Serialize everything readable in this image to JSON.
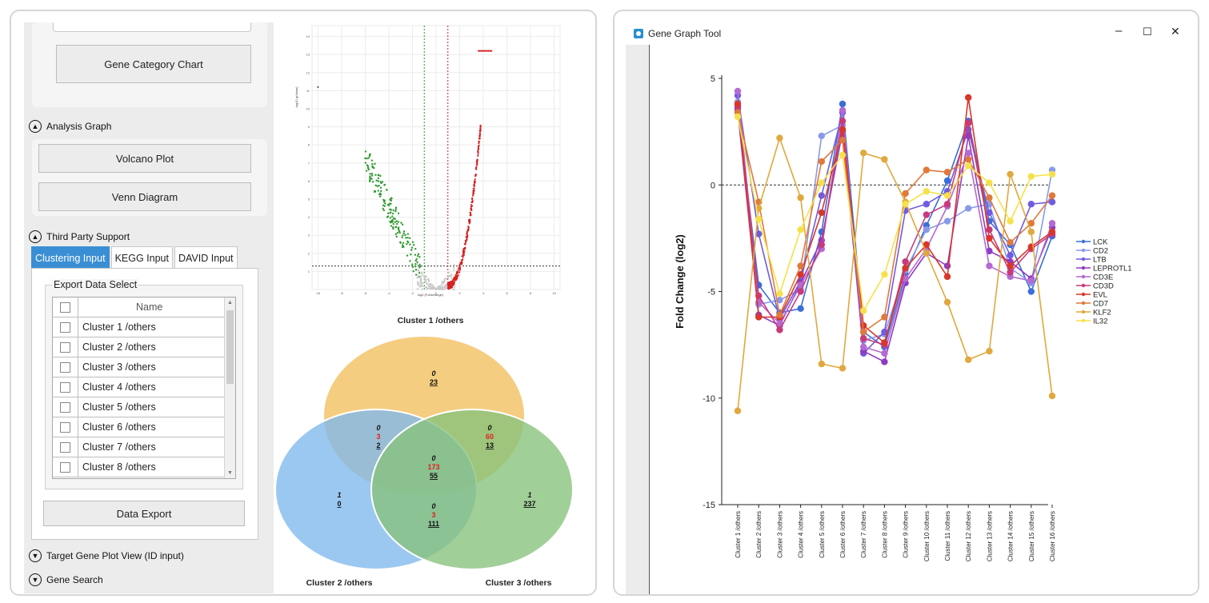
{
  "left": {
    "buttons": {
      "gene_category_chart": "Gene Category Chart",
      "volcano_plot": "Volcano Plot",
      "venn_diagram": "Venn Diagram",
      "data_export": "Data Export"
    },
    "sections": {
      "analysis_graph": "Analysis Graph",
      "third_party_support": "Third Party Support",
      "target_gene_plot_view": "Target Gene Plot View (ID input)",
      "gene_search": "Gene Search"
    },
    "tabs": [
      "Clustering Input",
      "KEGG Input",
      "DAVID Input"
    ],
    "export_group_label": "Export Data Select",
    "table_header": "Name",
    "table_rows": [
      "Cluster 1 /others",
      "Cluster 2 /others",
      "Cluster 3 /others",
      "Cluster 4 /others",
      "Cluster 5 /others",
      "Cluster 6 /others",
      "Cluster 7 /others",
      "Cluster 8 /others"
    ]
  },
  "volcano": {
    "title": "Cluster 1 /others",
    "x_ticks": [
      "-10",
      "-8",
      "-6",
      "-4",
      "-2",
      "0",
      "2",
      "4",
      "6",
      "8",
      "10"
    ],
    "y_ticks": [
      "1",
      "2",
      "3",
      "4",
      "5",
      "6",
      "7",
      "8",
      "9",
      "10",
      "11",
      "12",
      "13",
      "14"
    ],
    "xlabel": "log2 (Foldchange)",
    "ylabel": "-log10 (pValue)"
  },
  "venn": {
    "sets": [
      "Cluster 1 /others",
      "Cluster 2 /others",
      "Cluster 3 /others"
    ],
    "set_colors": [
      "#f2c46a",
      "#7fb8ec",
      "#86c27b"
    ],
    "regions": {
      "c1_only": {
        "top": "0",
        "mid": "",
        "bottom": "23"
      },
      "c2_only": {
        "top": "1",
        "mid": "",
        "bottom": "0"
      },
      "c3_only": {
        "top": "1",
        "mid": "",
        "bottom": "237"
      },
      "c1_c2": {
        "top": "0",
        "mid": "3",
        "bottom": "2"
      },
      "c1_c3": {
        "top": "0",
        "mid": "60",
        "bottom": "13"
      },
      "c2_c3": {
        "top": "0",
        "mid": "3",
        "bottom": "111"
      },
      "all": {
        "top": "0",
        "mid": "173",
        "bottom": "55"
      }
    },
    "labels": {
      "c2": "Cluster 2 /others",
      "c3": "Cluster 3 /others"
    }
  },
  "window": {
    "title": "Gene Graph Tool",
    "controls": {
      "minimize": "–",
      "maximize": "☐",
      "close": "✕"
    }
  },
  "chart_data": {
    "type": "line",
    "title": "",
    "xlabel": "",
    "ylabel": "Fold Change (log2)",
    "ylim": [
      -15,
      5
    ],
    "y_ticks": [
      5,
      0,
      -5,
      -10,
      -15
    ],
    "reference_line": 0,
    "legend_position": "right",
    "categories": [
      "Cluster 1 /others",
      "Cluster 2 /others",
      "Cluster 3 /others",
      "Cluster 4 /others",
      "Cluster 5 /others",
      "Cluster 6 /others",
      "Cluster 7 /others",
      "Cluster 8 /others",
      "Cluster 9 /others",
      "Cluster 10 /others",
      "Cluster 11 /others",
      "Cluster 12 /others",
      "Cluster 13 /others",
      "Cluster 14 /others",
      "Cluster 15 /others",
      "Cluster 16 /others"
    ],
    "series": [
      {
        "name": "LCK",
        "color": "#3a6fd8",
        "values": [
          3.6,
          -4.7,
          -6.0,
          -5.8,
          -2.2,
          3.8,
          -6.9,
          -7.6,
          -4.2,
          -1.9,
          0.2,
          3.0,
          -1.7,
          -2.8,
          -5.0,
          -2.4
        ]
      },
      {
        "name": "CD2",
        "color": "#8a9ae8",
        "values": [
          3.9,
          -5.6,
          -5.4,
          -4.9,
          2.3,
          2.8,
          -7.3,
          -7.0,
          -4.0,
          -2.1,
          -1.7,
          -1.1,
          -0.9,
          -3.9,
          -4.6,
          0.7
        ]
      },
      {
        "name": "LTB",
        "color": "#6f5ce0",
        "values": [
          4.2,
          -2.3,
          -6.3,
          -4.5,
          -0.5,
          3.4,
          -7.9,
          -6.9,
          -1.2,
          -0.9,
          -0.3,
          2.6,
          -1.3,
          -3.3,
          -0.9,
          -0.8
        ]
      },
      {
        "name": "LEPROTL1",
        "color": "#8e3cc4",
        "values": [
          3.5,
          -6.1,
          -6.6,
          -4.6,
          -2.6,
          2.5,
          -7.8,
          -8.3,
          -4.6,
          -3.2,
          -3.8,
          2.3,
          -3.1,
          -3.6,
          -4.4,
          -2.0
        ]
      },
      {
        "name": "CD3E",
        "color": "#b46ad2",
        "values": [
          4.4,
          -5.5,
          -6.5,
          -4.7,
          -3.0,
          3.5,
          -7.6,
          -7.9,
          -4.4,
          -3.0,
          -1.0,
          1.5,
          -3.8,
          -4.3,
          -4.5,
          -1.8
        ]
      },
      {
        "name": "CD3D",
        "color": "#c83a7c",
        "values": [
          3.7,
          -5.2,
          -6.8,
          -5.0,
          -2.8,
          3.0,
          -7.2,
          -7.5,
          -3.6,
          -1.4,
          -0.9,
          2.9,
          -2.1,
          -4.1,
          -3.0,
          -2.3
        ]
      },
      {
        "name": "EVL",
        "color": "#d9362a",
        "values": [
          3.8,
          -6.2,
          -6.2,
          -4.2,
          -1.3,
          2.6,
          -6.6,
          -7.4,
          -3.9,
          -2.8,
          -4.3,
          4.1,
          -2.5,
          -3.8,
          -2.9,
          -2.2
        ]
      },
      {
        "name": "CD7",
        "color": "#e0793a",
        "values": [
          3.4,
          -0.8,
          -6.1,
          -3.8,
          1.1,
          2.1,
          -6.9,
          -6.2,
          -0.4,
          0.7,
          0.6,
          1.2,
          -0.6,
          -2.7,
          -1.8,
          -0.5
        ]
      },
      {
        "name": "KLF2",
        "color": "#e0a83e",
        "values": [
          -10.6,
          -1.1,
          2.2,
          -0.6,
          -8.4,
          -8.6,
          1.5,
          1.2,
          -0.8,
          -3.2,
          -5.5,
          -8.2,
          -7.8,
          0.5,
          -2.2,
          -9.9
        ]
      },
      {
        "name": "IL32",
        "color": "#f5e14a",
        "values": [
          3.2,
          -1.6,
          -5.1,
          -2.1,
          0.1,
          1.4,
          -5.9,
          -4.2,
          -0.9,
          -0.3,
          -0.5,
          0.9,
          0.1,
          -1.7,
          0.4,
          0.5
        ]
      }
    ]
  }
}
